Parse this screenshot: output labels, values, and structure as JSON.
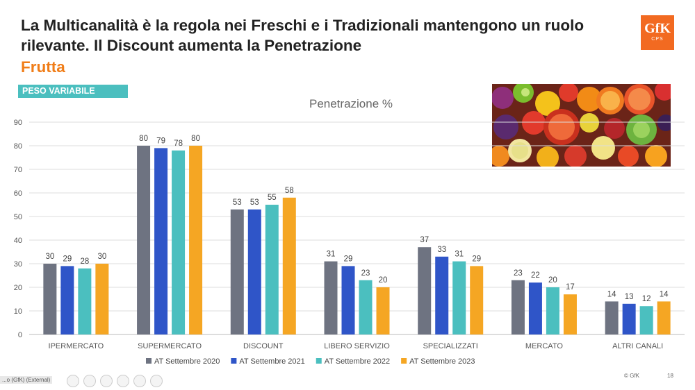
{
  "header": {
    "title": "La Multicanalità è la regola nei Freschi e i Tradizionali mantengono un ruolo rilevante. Il Discount aumenta la Penetrazione",
    "subtitle": "Frutta",
    "tag": "PESO VARIABILE",
    "logo_text": "GfK",
    "logo_sub": "CPS"
  },
  "footer": {
    "brand": "© GfK",
    "page": "18",
    "presenter_label": "...o (GfK) (External)"
  },
  "colors": {
    "series": [
      "#6e7381",
      "#2f55c8",
      "#4bbfbf",
      "#f5a623"
    ],
    "grid": "#dcdcdc",
    "axis_text": "#555555"
  },
  "chart_data": {
    "type": "bar",
    "title": "Penetrazione %",
    "categories": [
      "IPERMERCATO",
      "SUPERMERCATO",
      "DISCOUNT",
      "LIBERO SERVIZIO",
      "SPECIALIZZATI",
      "MERCATO",
      "ALTRI CANALI"
    ],
    "series": [
      {
        "name": "AT Settembre 2020",
        "values": [
          30,
          80,
          53,
          31,
          37,
          23,
          14
        ]
      },
      {
        "name": "AT Settembre 2021",
        "values": [
          29,
          79,
          53,
          29,
          33,
          22,
          13
        ]
      },
      {
        "name": "AT Settembre 2022",
        "values": [
          28,
          78,
          55,
          23,
          31,
          20,
          12
        ]
      },
      {
        "name": "AT Settembre 2023",
        "values": [
          30,
          80,
          58,
          20,
          29,
          17,
          14
        ]
      }
    ],
    "ylim": [
      0,
      90
    ],
    "yticks": [
      0,
      10,
      20,
      30,
      40,
      50,
      60,
      70,
      80,
      90
    ],
    "xlabel": "",
    "ylabel": "",
    "grid": true,
    "legend_position": "bottom"
  }
}
